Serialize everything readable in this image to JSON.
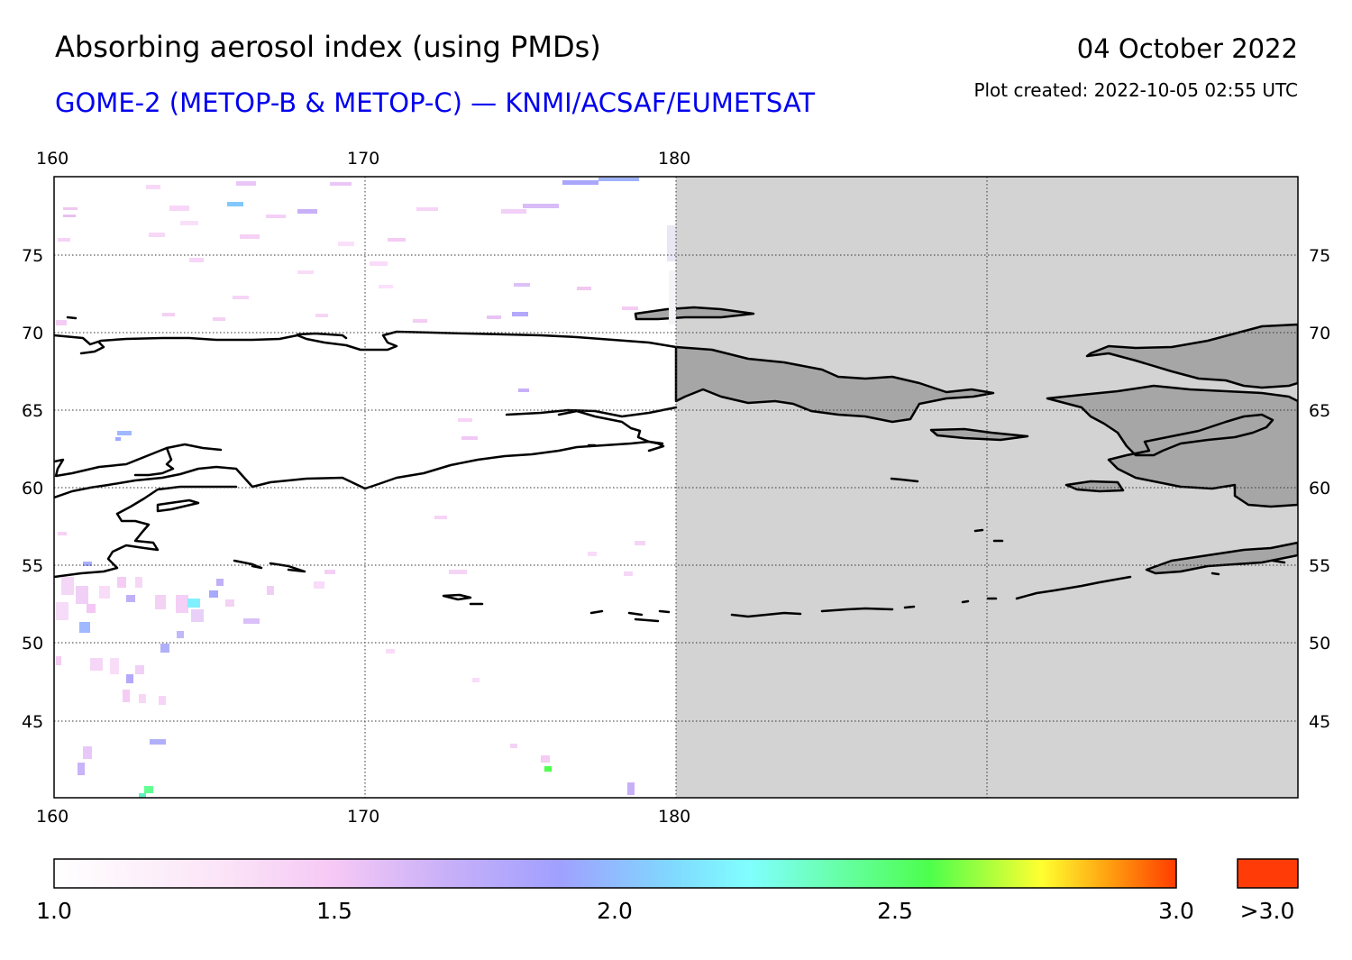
{
  "header": {
    "title": "Absorbing aerosol index (using PMDs)",
    "subtitle": "GOME-2 (METOP-B & METOP-C) — KNMI/ACSAF/EUMETSAT",
    "date": "04 October 2022",
    "created": "Plot created: 2022-10-05 02:55 UTC"
  },
  "map": {
    "lon_ticks": [
      "160",
      "170",
      "180"
    ],
    "lat_ticks": [
      "75",
      "70",
      "65",
      "60",
      "55",
      "50",
      "45"
    ],
    "colors": {
      "land_no_data": "#a6a6a6",
      "no_data": "#d3d3d3",
      "coast": "#000000",
      "grid": "#333333"
    }
  },
  "colorbar": {
    "labels": [
      "1.0",
      "1.5",
      "2.0",
      "2.5",
      "3.0"
    ],
    "overflow_label": ">3.0",
    "colors": [
      "#ffffff",
      "#f7d2f7",
      "#a0a0ff",
      "#80ffff",
      "#4cff4c",
      "#ffff30",
      "#ff8c00",
      "#ff3c00"
    ],
    "overflow_color": "#ff3c08"
  }
}
